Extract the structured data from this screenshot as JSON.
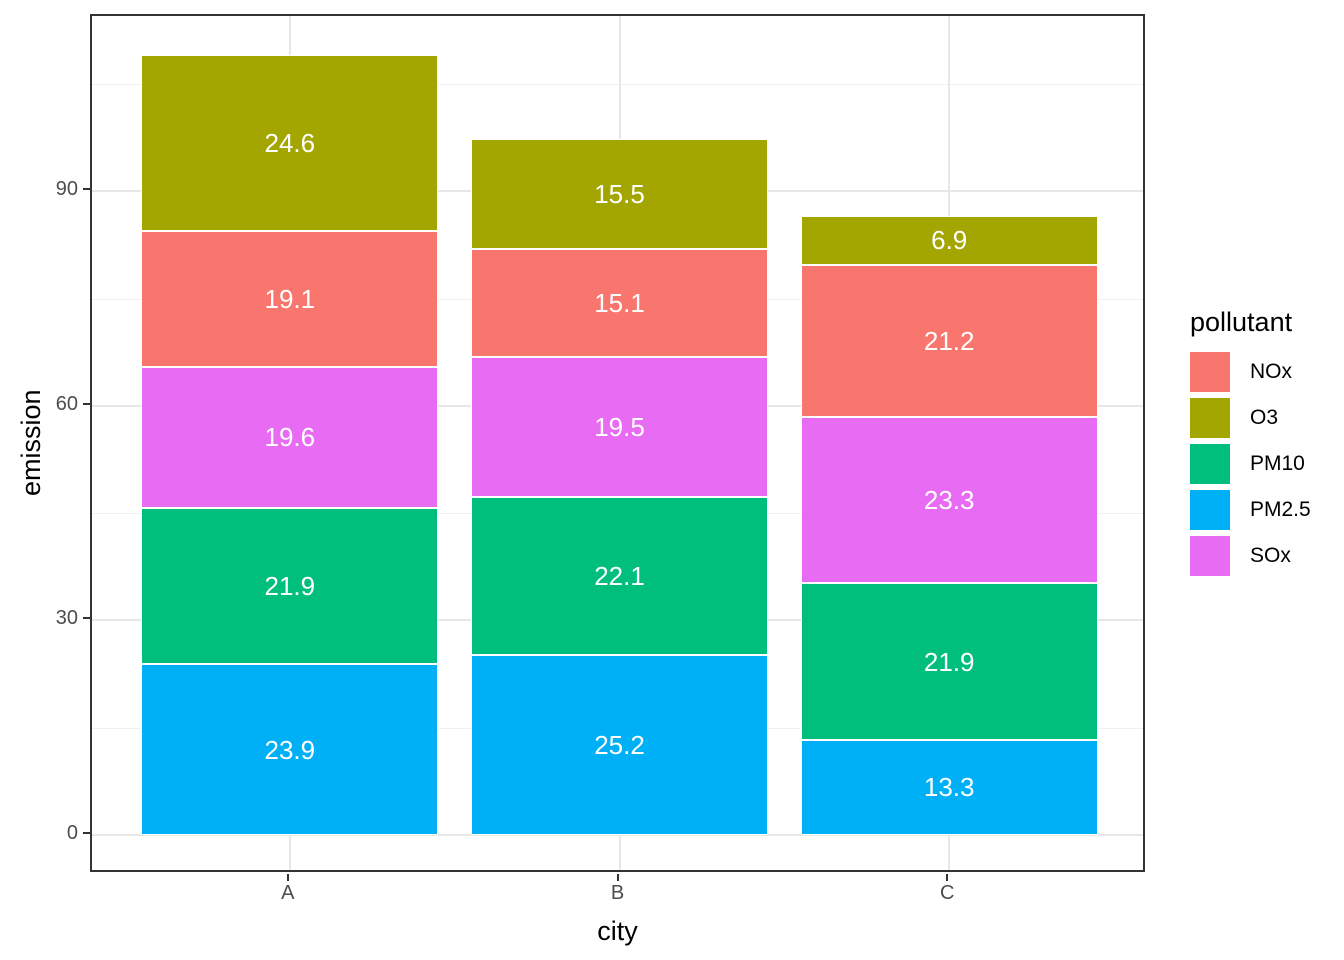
{
  "chart_data": {
    "type": "bar",
    "variant": "stacked-vertical",
    "title": "",
    "xlabel": "city",
    "ylabel": "emission",
    "categories": [
      "A",
      "B",
      "C"
    ],
    "series_order": "bottom-to-top",
    "series": [
      {
        "name": "PM2.5",
        "color": "#00B0F6",
        "values": [
          23.9,
          25.2,
          13.3
        ]
      },
      {
        "name": "PM10",
        "color": "#00BF7D",
        "values": [
          21.9,
          22.1,
          21.9
        ]
      },
      {
        "name": "SOx",
        "color": "#E76BF3",
        "values": [
          19.6,
          19.5,
          23.3
        ]
      },
      {
        "name": "NOx",
        "color": "#F8766D",
        "values": [
          19.1,
          15.1,
          21.2
        ]
      },
      {
        "name": "O3",
        "color": "#A3A500",
        "values": [
          24.6,
          15.5,
          6.9
        ]
      }
    ],
    "bar_value_labels_shown": true,
    "bar_label_color": "#FFFFFF",
    "x_axis": {
      "tick_labels": [
        "A",
        "B",
        "C"
      ]
    },
    "y_axis": {
      "tick_labels": [
        "0",
        "30",
        "60",
        "90"
      ],
      "ticks": [
        0,
        30,
        60,
        90
      ],
      "minor_ticks": [
        15,
        45,
        75,
        105
      ],
      "domain": [
        -5.455,
        114.545
      ]
    },
    "grid": true,
    "legend": {
      "title": "pollutant",
      "position": "right",
      "entries": [
        {
          "label": "NOx",
          "color": "#F8766D"
        },
        {
          "label": "O3",
          "color": "#A3A500"
        },
        {
          "label": "PM10",
          "color": "#00BF7D"
        },
        {
          "label": "PM2.5",
          "color": "#00B0F6"
        },
        {
          "label": "SOx",
          "color": "#E76BF3"
        }
      ]
    }
  },
  "style_colors": {
    "panel_border": "#333333",
    "grid_major": "#E7E7E7",
    "grid_minor": "#F0F0F0",
    "tick_mark": "#333333",
    "tick_label": "#4D4D4D",
    "axis_title": "#000000",
    "background": "#FFFFFF"
  }
}
